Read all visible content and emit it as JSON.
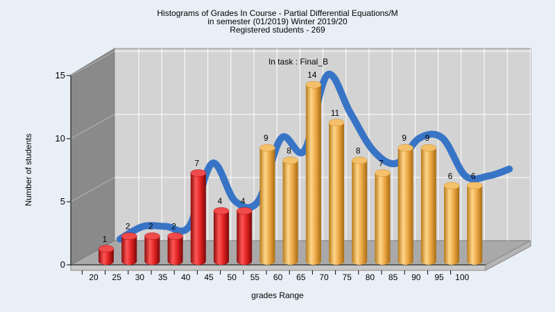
{
  "chart_data": {
    "type": "bar",
    "title": [
      "Histograms of Grades  In Course - Partial Differential Equations/M",
      "in semester  (01/2019) Winter 2019/20",
      "Registered students - 269"
    ],
    "annotation": "In task : Final_B",
    "xlabel": "grades Range",
    "ylabel": "Number of students",
    "ylim": [
      0,
      15
    ],
    "yticks": [
      "0",
      "5",
      "10",
      "15"
    ],
    "xticks": [
      "20",
      "25",
      "30",
      "35",
      "40",
      "45",
      "50",
      "55",
      "60",
      "65",
      "70",
      "75",
      "80",
      "85",
      "90",
      "95",
      "100"
    ],
    "values": [
      1,
      2,
      2,
      2,
      7,
      4,
      4,
      9,
      8,
      14,
      11,
      8,
      7,
      9,
      9,
      6,
      6
    ],
    "bar_colors": [
      "#d71f1f",
      "#d71f1f",
      "#d71f1f",
      "#d71f1f",
      "#d71f1f",
      "#d71f1f",
      "#d71f1f",
      "#e6a23c",
      "#e6a23c",
      "#e6a23c",
      "#e6a23c",
      "#e6a23c",
      "#e6a23c",
      "#e6a23c",
      "#e6a23c",
      "#e6a23c",
      "#e6a23c"
    ],
    "trend_color": "#2f6fc4",
    "grid": true,
    "3d": true
  }
}
